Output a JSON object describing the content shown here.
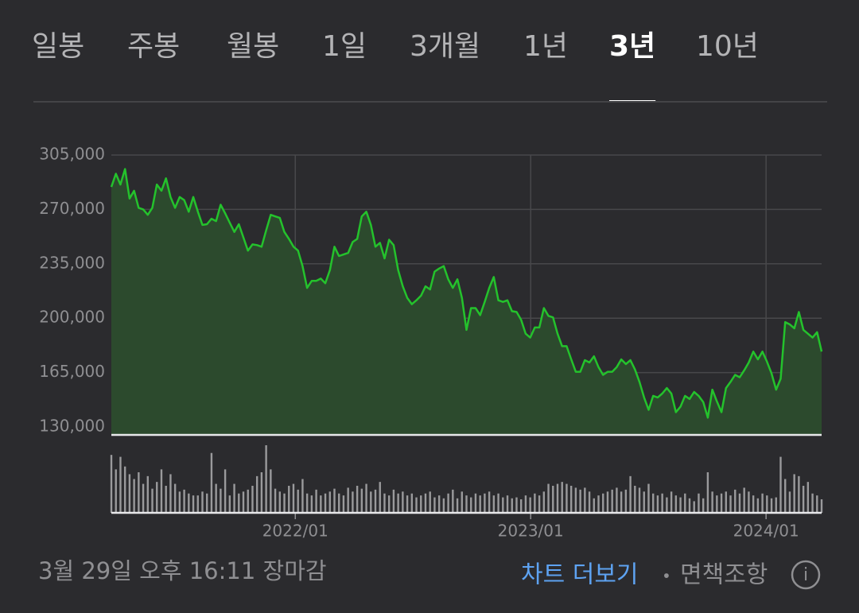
{
  "tabs": [
    "일봉",
    "주봉",
    "월봉",
    "1일",
    "3개월",
    "1년",
    "3년",
    "10년"
  ],
  "selected_tab": 6,
  "chart_data": {
    "type": "line",
    "series": [
      {
        "color": "#24c22c",
        "values": [
          284500,
          293000,
          286000,
          296000,
          277000,
          282000,
          271000,
          270000,
          266500,
          271000,
          286000,
          282000,
          290000,
          278000,
          271000,
          278000,
          276000,
          268500,
          278000,
          268500,
          260000,
          260500,
          264000,
          262500,
          273000,
          267500,
          261500,
          255500,
          260500,
          252000,
          243500,
          247500,
          247000,
          246000,
          256500,
          266500,
          265500,
          264500,
          255500,
          251000,
          246000,
          243500,
          233500,
          219500,
          224000,
          224000,
          225500,
          222500,
          231000,
          246000,
          240000,
          241000,
          242000,
          249000,
          251000,
          265500,
          268500,
          260000,
          246000,
          248500,
          238500,
          250500,
          247000,
          231000,
          220500,
          213000,
          209000,
          211500,
          214500,
          220500,
          218500,
          230000,
          232000,
          233500,
          225000,
          219500,
          225000,
          213000,
          192500,
          206500,
          206500,
          202000,
          210500,
          219500,
          226500,
          211500,
          210500,
          211500,
          204500,
          204000,
          199000,
          190000,
          187500,
          194000,
          194000,
          206500,
          201500,
          200500,
          190000,
          182000,
          182000,
          173500,
          165500,
          165500,
          173000,
          171500,
          175500,
          168500,
          163500,
          165500,
          165500,
          168500,
          173500,
          170500,
          173000,
          167000,
          159000,
          149000,
          141000,
          150000,
          149000,
          151500,
          155000,
          151500,
          139500,
          143000,
          150000,
          148000,
          152500,
          150000,
          146000,
          136000,
          154000,
          146500,
          139500,
          155000,
          159000,
          163500,
          162000,
          166500,
          171500,
          178500,
          173500,
          178500,
          172000,
          164500,
          154000,
          161000,
          197500,
          196000,
          193500,
          204000,
          192500,
          190000,
          187500,
          191000,
          178500
        ]
      }
    ],
    "volume": [
      60,
      45,
      58,
      48,
      40,
      35,
      42,
      30,
      38,
      25,
      32,
      45,
      28,
      40,
      30,
      22,
      24,
      20,
      18,
      18,
      22,
      20,
      62,
      30,
      25,
      45,
      18,
      30,
      20,
      22,
      24,
      28,
      38,
      42,
      70,
      45,
      25,
      22,
      20,
      28,
      30,
      24,
      35,
      20,
      18,
      24,
      18,
      20,
      22,
      25,
      20,
      18,
      26,
      22,
      28,
      25,
      30,
      22,
      24,
      32,
      20,
      18,
      24,
      20,
      22,
      18,
      20,
      16,
      18,
      20,
      22,
      16,
      18,
      15,
      20,
      24,
      15,
      22,
      18,
      16,
      20,
      18,
      20,
      22,
      18,
      20,
      16,
      18,
      15,
      16,
      14,
      18,
      16,
      20,
      18,
      22,
      30,
      28,
      30,
      32,
      30,
      28,
      26,
      24,
      26,
      22,
      15,
      18,
      20,
      22,
      24,
      26,
      22,
      24,
      38,
      28,
      26,
      22,
      30,
      20,
      18,
      20,
      16,
      22,
      18,
      16,
      20,
      15,
      12,
      20,
      15,
      42,
      22,
      18,
      20,
      22,
      18,
      24,
      20,
      26,
      22,
      18,
      15,
      20,
      18,
      15,
      16,
      58,
      35,
      22,
      40,
      38,
      28,
      32,
      20,
      18,
      14
    ],
    "volume_color": "#9a9a9c",
    "fill_color": "#2c4a2d",
    "xlim": [
      0,
      156
    ],
    "xticks": [
      {
        "value": 40.4,
        "label": "2022/01"
      },
      {
        "value": 92.1,
        "label": "2023/01"
      },
      {
        "value": 143.8,
        "label": "2024/01"
      }
    ],
    "ylim": [
      130000,
      305000
    ],
    "yticks": [
      {
        "value": 130000,
        "label": "130,000"
      },
      {
        "value": 165000,
        "label": "165,000"
      },
      {
        "value": 200000,
        "label": "200,000"
      },
      {
        "value": 235000,
        "label": "235,000"
      },
      {
        "value": 270000,
        "label": "270,000"
      },
      {
        "value": 305000,
        "label": "305,000"
      }
    ],
    "grid": true
  },
  "footer": {
    "timestamp": "3월 29일 오후 16:11 장마감",
    "more_link": "차트 더보기",
    "separator": "•",
    "disclaimer": "면책조항",
    "info_icon": "i"
  }
}
